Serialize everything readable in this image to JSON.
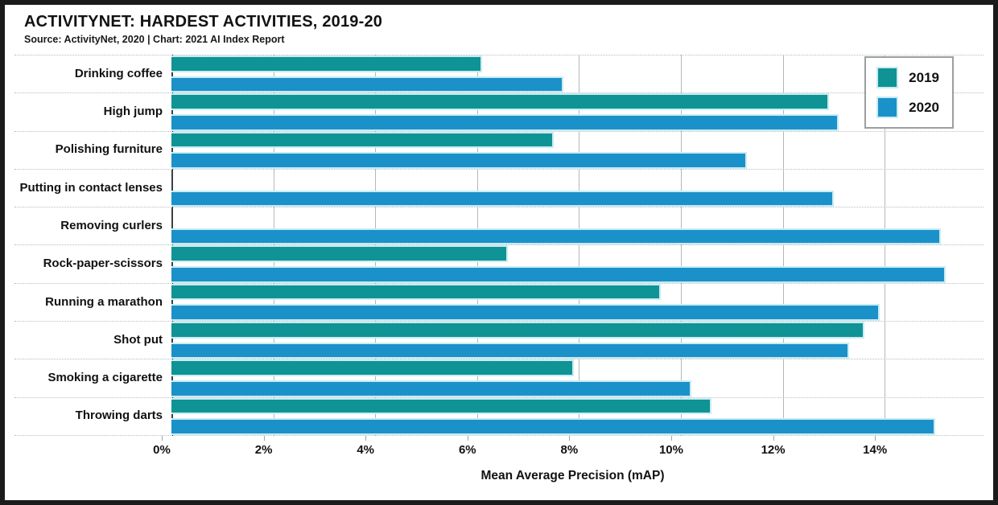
{
  "header": {
    "title": "ACTIVITYNET: HARDEST ACTIVITIES, 2019-20",
    "source_line": "Source: ActivityNet, 2020 | Chart: 2021 AI Index Report"
  },
  "legend": {
    "items": [
      {
        "label": "2019",
        "color": "#0f9394"
      },
      {
        "label": "2020",
        "color": "#1b91c9"
      }
    ]
  },
  "colors": {
    "series_2019": "#0f9394",
    "series_2020": "#1b91c9",
    "bar_outline": "#c7ecf3",
    "gridline": "#b4b8ba",
    "frame_border": "#1b1b1b"
  },
  "chart_data": {
    "type": "bar",
    "orientation": "horizontal",
    "title": "ACTIVITYNET: HARDEST ACTIVITIES, 2019-20",
    "categories": [
      "Drinking coffee",
      "High jump",
      "Polishing furniture",
      "Putting in contact lenses",
      "Removing curlers",
      "Rock-paper-scissors",
      "Running a marathon",
      "Shot put",
      "Smoking a cigarette",
      "Throwing darts"
    ],
    "series": [
      {
        "name": "2019",
        "color": "#0f9394",
        "values": [
          6.1,
          12.9,
          7.5,
          null,
          null,
          6.6,
          9.6,
          13.6,
          7.9,
          10.6
        ]
      },
      {
        "name": "2020",
        "color": "#1b91c9",
        "values": [
          7.7,
          13.1,
          11.3,
          13.0,
          15.1,
          15.2,
          13.9,
          13.3,
          10.2,
          15.0
        ]
      }
    ],
    "xlabel": "Mean Average Precision (mAP)",
    "unit": "%",
    "x_ticks": [
      "0%",
      "2%",
      "4%",
      "6%",
      "8%",
      "10%",
      "12%",
      "14%"
    ],
    "x_tick_values": [
      0,
      2,
      4,
      6,
      8,
      10,
      12,
      14
    ],
    "xlim": [
      0,
      16.13
    ],
    "grid": "vertical-solid, horizontal-dotted-row-separators",
    "legend_position": "top-right"
  }
}
